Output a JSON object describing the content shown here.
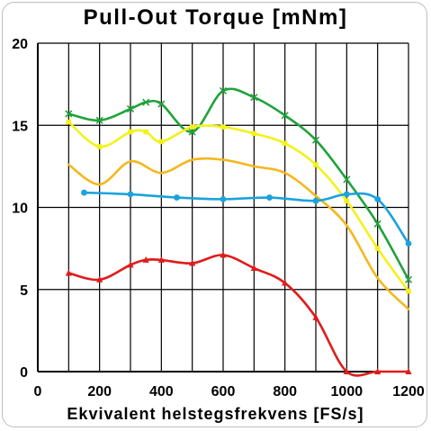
{
  "chart_data": {
    "type": "line",
    "title": "Pull-Out Torque [mNm]",
    "xlabel": "Ekvivalent helstegsfrekvens [FS/s]",
    "ylabel": "",
    "xlim": [
      0,
      1200
    ],
    "ylim": [
      0,
      20
    ],
    "x_ticks": [
      0,
      200,
      400,
      600,
      800,
      1000,
      1200
    ],
    "y_ticks": [
      0,
      5,
      10,
      15,
      20
    ],
    "x_gridlines": [
      0,
      100,
      200,
      300,
      400,
      500,
      600,
      700,
      800,
      900,
      1000,
      1100,
      1200
    ],
    "y_gridlines": [
      0,
      5,
      10,
      15,
      20
    ],
    "grid": true,
    "legend": "none",
    "series": [
      {
        "color": "#1fa33a",
        "marker": "x",
        "x": [
          100,
          200,
          300,
          350,
          400,
          500,
          600,
          700,
          800,
          900,
          1000,
          1100,
          1200
        ],
        "y": [
          15.7,
          15.3,
          16.0,
          16.4,
          16.3,
          14.6,
          17.1,
          16.7,
          15.6,
          14.1,
          11.7,
          9.0,
          5.6
        ]
      },
      {
        "color": "#f2f21a",
        "marker": "square",
        "x": [
          100,
          200,
          300,
          350,
          400,
          500,
          600,
          700,
          800,
          900,
          1000,
          1100,
          1200
        ],
        "y": [
          15.2,
          13.7,
          14.6,
          14.6,
          14.0,
          14.9,
          14.9,
          14.5,
          13.9,
          12.6,
          10.4,
          7.5,
          4.9
        ]
      },
      {
        "color": "#f5b71c",
        "marker": "none",
        "x": [
          100,
          200,
          300,
          400,
          500,
          600,
          700,
          800,
          900,
          1000,
          1100,
          1200
        ],
        "y": [
          12.6,
          11.4,
          12.8,
          12.1,
          12.9,
          12.9,
          12.5,
          12.1,
          10.7,
          8.9,
          5.7,
          3.8
        ]
      },
      {
        "color": "#1ba2dc",
        "marker": "circle",
        "x": [
          150,
          300,
          450,
          600,
          750,
          900,
          1000,
          1100,
          1200
        ],
        "y": [
          10.9,
          10.8,
          10.6,
          10.5,
          10.6,
          10.4,
          10.8,
          10.5,
          7.8
        ]
      },
      {
        "color": "#e01b1b",
        "marker": "triangle",
        "x": [
          100,
          200,
          300,
          350,
          400,
          500,
          600,
          700,
          800,
          900,
          1000,
          1100,
          1200
        ],
        "y": [
          6.0,
          5.6,
          6.5,
          6.8,
          6.8,
          6.6,
          7.1,
          6.3,
          5.4,
          3.3,
          0,
          0,
          0
        ]
      }
    ]
  }
}
